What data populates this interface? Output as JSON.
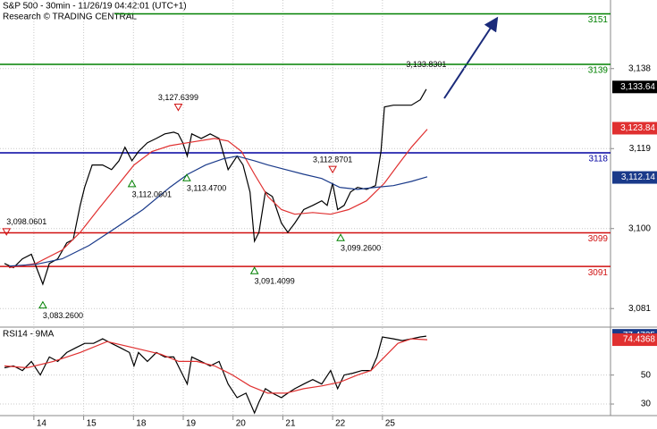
{
  "chart_data": [
    {
      "type": "line",
      "title": "S&P 500 - 30min - 11/26/19 04:42:01 (UTC+1)",
      "subtitle": "Research © TRADING CENTRAL",
      "xlim": [
        0.32,
        12.58
      ],
      "xticks": [
        {
          "value": 1,
          "label": "14"
        },
        {
          "value": 2,
          "label": "15"
        },
        {
          "value": 3,
          "label": "18"
        },
        {
          "value": 4,
          "label": "19"
        },
        {
          "value": 5,
          "label": "20"
        },
        {
          "value": 6,
          "label": "21"
        },
        {
          "value": 7,
          "label": "22"
        },
        {
          "value": 8,
          "label": "25"
        }
      ],
      "ylim": [
        3076.8,
        3154.3
      ],
      "yticks": [
        {
          "value": 3081,
          "label": "3,081"
        },
        {
          "value": 3100,
          "label": "3,100"
        },
        {
          "value": 3119,
          "label": "3,119"
        },
        {
          "value": 3138,
          "label": "3,138"
        }
      ],
      "grid": true,
      "series": [
        {
          "color": "#000000",
          "x": [
            0.41,
            0.59,
            0.77,
            0.95,
            1.18,
            1.31,
            1.48,
            1.66,
            1.79,
            1.93,
            2.02,
            2.17,
            2.38,
            2.56,
            2.71,
            2.83,
            2.97,
            3.1,
            3.28,
            3.46,
            3.63,
            3.81,
            3.9,
            3.99,
            4.08,
            4.17,
            4.36,
            4.54,
            4.72,
            4.9,
            5.08,
            5.2,
            5.34,
            5.43,
            5.52,
            5.65,
            5.79,
            5.97,
            6.1,
            6.24,
            6.42,
            6.6,
            6.78,
            6.89,
            7.0,
            7.1,
            7.23,
            7.36,
            7.5,
            7.68,
            7.86,
            7.97,
            8.04,
            8.22,
            8.4,
            8.58,
            8.76,
            8.88
          ],
          "values": [
            3091.7,
            3090.7,
            3092.8,
            3093.9,
            3086.8,
            3091.7,
            3092.8,
            3096.6,
            3097.4,
            3105.5,
            3109.8,
            3115.1,
            3115.1,
            3114.0,
            3116.1,
            3119.3,
            3116.1,
            3118.3,
            3120.4,
            3121.4,
            3122.5,
            3122.9,
            3122.5,
            3120.4,
            3117.2,
            3122.5,
            3121.4,
            3122.5,
            3121.4,
            3114.0,
            3117.2,
            3115.1,
            3108.7,
            3097.0,
            3099.1,
            3108.7,
            3107.6,
            3101.3,
            3099.1,
            3101.3,
            3104.5,
            3105.5,
            3106.6,
            3105.5,
            3110.8,
            3104.5,
            3105.5,
            3108.7,
            3109.8,
            3109.3,
            3110.2,
            3118.3,
            3128.9,
            3129.3,
            3129.3,
            3129.3,
            3130.6,
            3133.1
          ],
          "last_value": 3133.64,
          "last_label": "3,133.64",
          "tag_color": "#000000"
        },
        {
          "color": "#e03030",
          "x": [
            0.5,
            1.04,
            1.57,
            1.93,
            2.29,
            2.65,
            3.01,
            3.37,
            3.73,
            4.09,
            4.63,
            4.9,
            5.17,
            5.43,
            5.7,
            5.97,
            6.24,
            6.6,
            6.96,
            7.32,
            7.68,
            8.04,
            8.31,
            8.58,
            8.9
          ],
          "values": [
            3090.7,
            3091.7,
            3094.9,
            3099.1,
            3104.5,
            3109.8,
            3115.1,
            3118.3,
            3119.7,
            3120.4,
            3121.4,
            3120.8,
            3118.3,
            3112.9,
            3107.6,
            3104.5,
            3103.4,
            3103.8,
            3103.4,
            3104.5,
            3106.6,
            3110.8,
            3115.1,
            3119.3,
            3123.6
          ],
          "last_value": 3123.84,
          "last_label": "3,123.84",
          "tag_color": "#e03030"
        },
        {
          "color": "#1a3a8a",
          "x": [
            0.5,
            1.04,
            1.57,
            2.11,
            2.65,
            3.19,
            3.73,
            4.09,
            4.45,
            4.81,
            5.08,
            5.43,
            5.7,
            6.06,
            6.42,
            6.78,
            7.14,
            7.5,
            7.86,
            8.22,
            8.58,
            8.9
          ],
          "values": [
            3091.1,
            3091.5,
            3092.8,
            3096.0,
            3100.2,
            3104.5,
            3109.8,
            3112.9,
            3115.1,
            3116.6,
            3117.2,
            3116.1,
            3115.1,
            3114.0,
            3112.9,
            3111.9,
            3109.8,
            3109.3,
            3109.8,
            3110.2,
            3111.2,
            3112.3
          ],
          "last_value": 3112.14,
          "last_label": "3,112.14",
          "tag_color": "#1a3a8a"
        }
      ],
      "levels": [
        {
          "value": 3151,
          "label": "3151",
          "color": "#008000",
          "from": 2.62
        },
        {
          "value": 3139,
          "label": "3139",
          "color": "#008000",
          "from": 0.32
        },
        {
          "value": 3118,
          "label": "3118",
          "color": "#0000a0",
          "from": 0.32
        },
        {
          "value": 3099,
          "label": "3099",
          "color": "#d01010",
          "from": 0.32
        },
        {
          "value": 3091,
          "label": "3091",
          "color": "#d01010",
          "from": 0.32
        }
      ],
      "annotations": [
        {
          "label": "3,098.0601",
          "x": 0.45,
          "value": 3098.0601,
          "marker": "down"
        },
        {
          "label": "3,083.2600",
          "x": 1.18,
          "value": 3083.26,
          "marker": "up"
        },
        {
          "label": "3,112.0601",
          "x": 2.97,
          "value": 3112.0601,
          "marker": "up"
        },
        {
          "label": "3,127.6399",
          "x": 3.9,
          "value": 3127.6399,
          "marker": "down"
        },
        {
          "label": "3,113.4700",
          "x": 4.07,
          "value": 3113.47,
          "marker": "up"
        },
        {
          "label": "3,091.4099",
          "x": 5.43,
          "value": 3091.4099,
          "marker": "up"
        },
        {
          "label": "3,112.8701",
          "x": 7.0,
          "value": 3112.8701,
          "marker": "down"
        },
        {
          "label": "3,099.2600",
          "x": 7.16,
          "value": 3099.26,
          "marker": "up"
        },
        {
          "label": "3,133.8301",
          "x": 8.88,
          "value": 3133.8301
        }
      ]
    },
    {
      "type": "line",
      "title": "RSI14 - 9MA",
      "xlim": [
        0.32,
        12.58
      ],
      "ylim": [
        22,
        82.5
      ],
      "yticks": [
        30,
        50
      ],
      "grid": true,
      "series": [
        {
          "color": "#000000",
          "x": [
            0.41,
            0.59,
            0.77,
            0.95,
            1.13,
            1.31,
            1.48,
            1.66,
            1.84,
            2.02,
            2.2,
            2.38,
            2.56,
            2.74,
            2.92,
            3.01,
            3.1,
            3.28,
            3.46,
            3.63,
            3.81,
            3.99,
            4.08,
            4.17,
            4.36,
            4.54,
            4.72,
            4.9,
            5.08,
            5.26,
            5.43,
            5.52,
            5.65,
            5.79,
            5.97,
            6.1,
            6.24,
            6.42,
            6.6,
            6.78,
            6.96,
            7.1,
            7.23,
            7.41,
            7.59,
            7.77,
            7.89,
            8.0,
            8.22,
            8.4,
            8.58,
            8.76,
            8.88
          ],
          "values": [
            55.0,
            56.3,
            53.1,
            59.4,
            50.0,
            62.5,
            59.4,
            65.6,
            68.8,
            71.9,
            71.9,
            75.0,
            71.9,
            68.8,
            65.6,
            56.3,
            65.6,
            59.4,
            65.6,
            62.5,
            62.5,
            50.0,
            43.8,
            62.5,
            59.4,
            56.3,
            59.4,
            43.8,
            34.4,
            37.5,
            23.8,
            31.3,
            40.6,
            37.5,
            34.4,
            37.5,
            40.6,
            43.8,
            46.9,
            43.8,
            53.1,
            40.6,
            50.0,
            51.3,
            53.1,
            53.1,
            62.5,
            76.3,
            75.0,
            73.8,
            75.0,
            76.3,
            76.9
          ],
          "last_value": 77.4735,
          "last_label": "77.4735",
          "tag_color": "#1a3a8a"
        },
        {
          "color": "#e03030",
          "x": [
            0.41,
            0.86,
            1.39,
            1.93,
            2.47,
            3.01,
            3.55,
            3.91,
            4.27,
            4.63,
            4.99,
            5.34,
            5.7,
            6.06,
            6.42,
            6.78,
            7.14,
            7.5,
            7.77,
            8.04,
            8.31,
            8.58,
            8.9
          ],
          "values": [
            56.3,
            55.0,
            59.4,
            65.6,
            73.1,
            68.8,
            64.4,
            59.4,
            59.4,
            56.3,
            50.0,
            42.5,
            37.5,
            37.5,
            40.6,
            42.5,
            45.0,
            50.0,
            53.1,
            62.5,
            71.9,
            75.0,
            74.4
          ],
          "last_value": 74.4368,
          "last_label": "74.4368",
          "tag_color": "#e03030"
        }
      ]
    }
  ]
}
